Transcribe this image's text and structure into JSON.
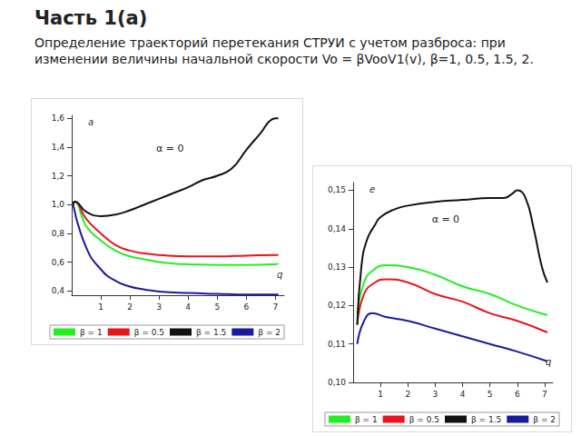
{
  "heading": "Часть 1(а)",
  "description": "Определение траекторий перетекания СТРУИ с учетом разброса: при изменении величины начальной скорости Vo = βVooV1(v), β=1, 0.5, 1.5, 2.",
  "chart_data": [
    {
      "type": "line",
      "x_label": "q",
      "y_label": "a",
      "annotation": "α = 0",
      "xlim": [
        0,
        7.3
      ],
      "xticks": [
        1,
        2,
        3,
        4,
        5,
        6,
        7
      ],
      "ylim": [
        0.37,
        1.62
      ],
      "yticks": [
        {
          "value": 0.4,
          "label": "0,4"
        },
        {
          "value": 0.6,
          "label": "0,6"
        },
        {
          "value": 0.8,
          "label": "0,8"
        },
        {
          "value": 1.0,
          "label": "1,0"
        },
        {
          "value": 1.2,
          "label": "1,2"
        },
        {
          "value": 1.4,
          "label": "1,4"
        },
        {
          "value": 1.6,
          "label": "1,6"
        }
      ],
      "grid": false,
      "legend": "bottom",
      "series": [
        {
          "name": "β = 1",
          "color": "#22ee22",
          "x": [
            0.05,
            0.1,
            0.5,
            1,
            1.5,
            2,
            2.5,
            3,
            3.5,
            4,
            5,
            6,
            7,
            7.1
          ],
          "values": [
            1.0,
            1.02,
            0.85,
            0.75,
            0.68,
            0.64,
            0.62,
            0.6,
            0.59,
            0.585,
            0.58,
            0.58,
            0.585,
            0.59
          ]
        },
        {
          "name": "β = 0.5",
          "color": "#e8141e",
          "x": [
            0.05,
            0.1,
            0.5,
            1,
            1.5,
            2,
            2.5,
            3,
            4,
            5,
            6,
            7,
            7.1
          ],
          "values": [
            1.0,
            1.02,
            0.9,
            0.8,
            0.72,
            0.68,
            0.66,
            0.65,
            0.64,
            0.64,
            0.645,
            0.65,
            0.65
          ]
        },
        {
          "name": "β = 1.5",
          "color": "#111111",
          "x": [
            0.05,
            0.1,
            0.5,
            1,
            1.5,
            2,
            2.5,
            3,
            3.5,
            4,
            4.5,
            5,
            5.5,
            6,
            6.5,
            6.8,
            7.0,
            7.1
          ],
          "values": [
            1.0,
            1.02,
            0.95,
            0.92,
            0.93,
            0.96,
            1.0,
            1.04,
            1.08,
            1.12,
            1.17,
            1.2,
            1.25,
            1.38,
            1.5,
            1.58,
            1.6,
            1.6
          ]
        },
        {
          "name": "β = 2",
          "color": "#1a1aa0",
          "x": [
            0.05,
            0.5,
            1,
            1.5,
            2,
            2.5,
            3,
            4,
            5,
            6,
            7.1
          ],
          "values": [
            1.0,
            0.7,
            0.55,
            0.47,
            0.43,
            0.41,
            0.395,
            0.385,
            0.38,
            0.375,
            0.375
          ]
        }
      ]
    },
    {
      "type": "line",
      "x_label": "q",
      "y_label": "e",
      "annotation": "α = 0",
      "xlim": [
        0,
        7.3
      ],
      "xticks": [
        1,
        2,
        3,
        4,
        5,
        6,
        7
      ],
      "ylim": [
        0.1,
        0.152
      ],
      "yticks": [
        {
          "value": 0.1,
          "label": "0,10"
        },
        {
          "value": 0.11,
          "label": "0,11"
        },
        {
          "value": 0.12,
          "label": "0,12"
        },
        {
          "value": 0.13,
          "label": "0,13"
        },
        {
          "value": 0.14,
          "label": "0,14"
        },
        {
          "value": 0.15,
          "label": "0,15"
        }
      ],
      "grid": false,
      "legend": "bottom",
      "series": [
        {
          "name": "β = 1",
          "color": "#22ee22",
          "x": [
            0.15,
            0.4,
            0.7,
            1.2,
            2,
            3,
            4,
            5,
            6,
            7.1
          ],
          "values": [
            0.118,
            0.126,
            0.129,
            0.1305,
            0.13,
            0.128,
            0.125,
            0.123,
            0.12,
            0.1175
          ]
        },
        {
          "name": "β = 0.5",
          "color": "#e8141e",
          "x": [
            0.15,
            0.4,
            0.8,
            1.2,
            2,
            3,
            4,
            5,
            6,
            7.1
          ],
          "values": [
            0.115,
            0.123,
            0.126,
            0.1268,
            0.126,
            0.123,
            0.121,
            0.118,
            0.116,
            0.113
          ]
        },
        {
          "name": "β = 1.5",
          "color": "#111111",
          "x": [
            0.15,
            0.3,
            0.5,
            0.8,
            1,
            1.5,
            2,
            3,
            4,
            5,
            5.5,
            5.8,
            6,
            6.3,
            6.6,
            6.9,
            7.1
          ],
          "values": [
            0.115,
            0.13,
            0.137,
            0.141,
            0.143,
            0.145,
            0.146,
            0.147,
            0.1475,
            0.148,
            0.148,
            0.149,
            0.15,
            0.148,
            0.14,
            0.13,
            0.126
          ]
        },
        {
          "name": "β = 2",
          "color": "#1a1aa0",
          "x": [
            0.15,
            0.4,
            0.7,
            1.2,
            2,
            3,
            4,
            5,
            6,
            7.1
          ],
          "values": [
            0.11,
            0.116,
            0.118,
            0.117,
            0.116,
            0.114,
            0.112,
            0.11,
            0.108,
            0.1055
          ]
        }
      ]
    }
  ]
}
